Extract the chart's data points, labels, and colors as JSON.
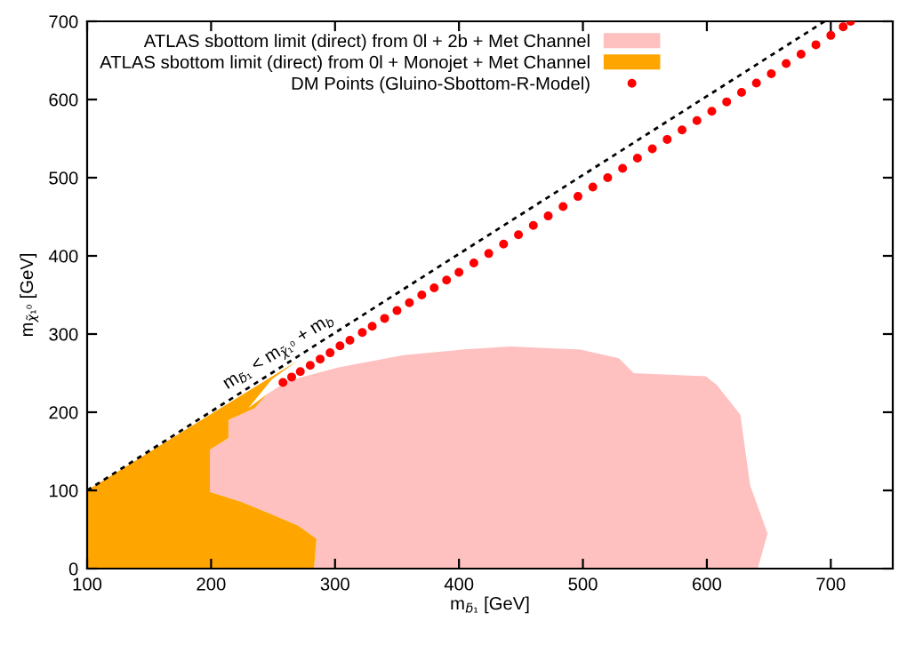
{
  "chart_data": {
    "type": "scatter",
    "xlabel": "m$_{b̃₁}$ [GeV]",
    "ylabel": "m$_{χ̃₁⁰}$ [GeV]",
    "xlim": [
      100,
      750
    ],
    "ylim": [
      0,
      700
    ],
    "xticks": [
      100,
      200,
      300,
      400,
      500,
      600,
      700
    ],
    "yticks": [
      0,
      100,
      200,
      300,
      400,
      500,
      600,
      700
    ],
    "grid": false,
    "legend": "top left",
    "series": [
      {
        "name": "ATLAS sbottom limit (direct) from 0l + 2b + Met Channel",
        "type": "area",
        "color": "#ffc0c0",
        "x": [
          283,
          285,
          270,
          245,
          225,
          199,
          199,
          214,
          214,
          235,
          245,
          262,
          302,
          355,
          402,
          441,
          498,
          529,
          541,
          599,
          608,
          627,
          635,
          649,
          641,
          283
        ],
        "values": [
          0,
          38,
          55,
          72,
          85,
          98,
          152,
          167,
          190,
          205,
          223,
          240,
          257,
          273,
          280,
          284,
          280,
          269,
          250,
          246,
          235,
          197,
          106,
          45,
          0,
          0
        ]
      },
      {
        "name": "ATLAS sbottom limit (direct) from 0l + Monojet + Met Channel",
        "type": "area",
        "color": "#ffa500",
        "x": [
          100,
          100,
          269,
          249,
          230,
          245,
          235,
          214,
          214,
          199,
          199,
          225,
          245,
          270,
          285,
          283,
          100
        ],
        "values": [
          0,
          100,
          265,
          242,
          205,
          223,
          205,
          190,
          167,
          152,
          98,
          85,
          72,
          55,
          38,
          0,
          0
        ]
      },
      {
        "name": "DM Points (Gluino-Sbottom-R-Model)",
        "color": "#ff0000",
        "marker": "circle",
        "x": [
          258,
          265,
          272,
          280,
          288,
          296,
          304,
          312,
          322,
          330,
          340,
          350,
          360,
          370,
          380,
          390,
          400,
          412,
          424,
          436,
          448,
          460,
          472,
          484,
          496,
          508,
          520,
          532,
          544,
          556,
          568,
          580,
          592,
          604,
          616,
          628,
          640,
          652,
          664,
          676,
          688,
          700,
          710,
          716
        ],
        "values": [
          238,
          245,
          252,
          260,
          268,
          276,
          285,
          292,
          302,
          310,
          320,
          330,
          340,
          350,
          359,
          369,
          379,
          391,
          403,
          415,
          427,
          439,
          451,
          463,
          476,
          488,
          500,
          512,
          525,
          537,
          549,
          561,
          573,
          585,
          597,
          609,
          621,
          633,
          646,
          658,
          670,
          682,
          693,
          700
        ]
      },
      {
        "type": "line",
        "color": "#000000",
        "line_style": "dashed",
        "x": [
          100,
          695
        ],
        "values": [
          100,
          700
        ]
      }
    ],
    "annotations": [
      "m$_{b̃₁}$ < m$_{χ̃₁⁰}$ + m$_{b}$"
    ]
  }
}
